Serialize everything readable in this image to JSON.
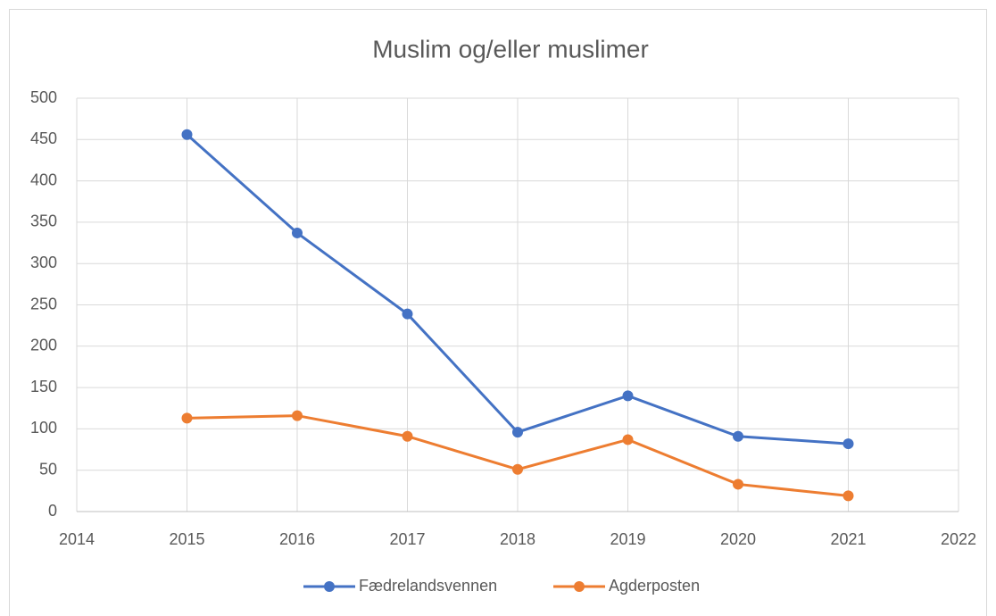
{
  "chart_data": {
    "type": "line",
    "title": "Muslim og/eller muslimer",
    "x": [
      2015,
      2016,
      2017,
      2018,
      2019,
      2020,
      2021
    ],
    "series": [
      {
        "name": "Fædrelandsvennen",
        "color": "#4472c4",
        "values": [
          456,
          337,
          239,
          96,
          140,
          91,
          82
        ]
      },
      {
        "name": "Agderposten",
        "color": "#ed7d31",
        "values": [
          113,
          116,
          91,
          51,
          87,
          33,
          19
        ]
      }
    ],
    "xlim": [
      2014,
      2022
    ],
    "xticks": [
      2014,
      2015,
      2016,
      2017,
      2018,
      2019,
      2020,
      2021,
      2022
    ],
    "ylim": [
      0,
      500
    ],
    "yticks": [
      0,
      50,
      100,
      150,
      200,
      250,
      300,
      350,
      400,
      450,
      500
    ],
    "grid": true,
    "legend": "bottom"
  }
}
